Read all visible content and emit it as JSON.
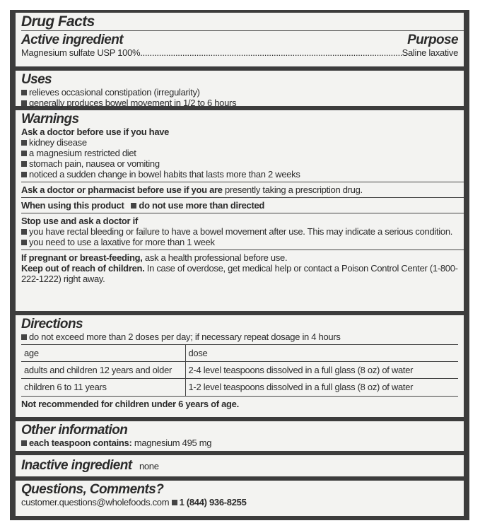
{
  "title": "Drug Facts",
  "active": {
    "heading": "Active ingredient",
    "purpose_heading": "Purpose",
    "ingredient": "Magnesium sulfate USP 100%",
    "dots": "........................................................................................................................",
    "purpose": "Saline laxative"
  },
  "uses": {
    "heading": "Uses",
    "items": [
      "relieves occasional constipation (irregularity)",
      "generally produces bowel movement in 1/2 to 6 hours"
    ]
  },
  "warnings": {
    "heading": "Warnings",
    "ask_doctor": {
      "heading": "Ask a doctor before use if you have",
      "items": [
        "kidney disease",
        "a magnesium restricted diet",
        "stomach pain, nausea or vomiting",
        "noticed a sudden change in bowel habits that lasts more than 2 weeks"
      ]
    },
    "ask_pharmacist": {
      "bold": "Ask a doctor or pharmacist before use if you are",
      "text": " presently taking a prescription drug."
    },
    "when_using": {
      "bold": "When using this product",
      "item": "do not use more than directed"
    },
    "stop_use": {
      "heading": "Stop use and ask a doctor if",
      "items": [
        "you have rectal bleeding or failure to have a bowel movement after use. This may indicate a serious condition.",
        "you need to use a laxative for more than 1 week"
      ]
    },
    "pregnant": {
      "bold": "If pregnant or breast-feeding,",
      "text": " ask a health professional before use."
    },
    "children": {
      "bold": "Keep out of reach of children.",
      "text": " In case of overdose, get medical help or contact a Poison Control Center (1-800-222-1222) right away."
    }
  },
  "directions": {
    "heading": "Directions",
    "item": "do not exceed more than 2 doses per day; if necessary repeat dosage in 4 hours",
    "table": {
      "headers": [
        "age",
        "dose"
      ],
      "rows": [
        [
          "adults and children 12 years and older",
          "2-4 level teaspoons dissolved in a full glass (8 oz) of water"
        ],
        [
          "children 6 to 11 years",
          "1-2 level teaspoons dissolved in a full glass (8 oz) of water"
        ]
      ]
    },
    "note": "Not recommended for children under 6 years of age."
  },
  "other": {
    "heading": "Other information",
    "bold": "each teaspoon contains:",
    "text": " magnesium 495 mg"
  },
  "inactive": {
    "heading": "Inactive ingredient",
    "text": "none"
  },
  "questions": {
    "heading": "Questions, Comments?",
    "email": "customer.questions@wholefoods.com",
    "phone": "1 (844) 936-8255"
  }
}
